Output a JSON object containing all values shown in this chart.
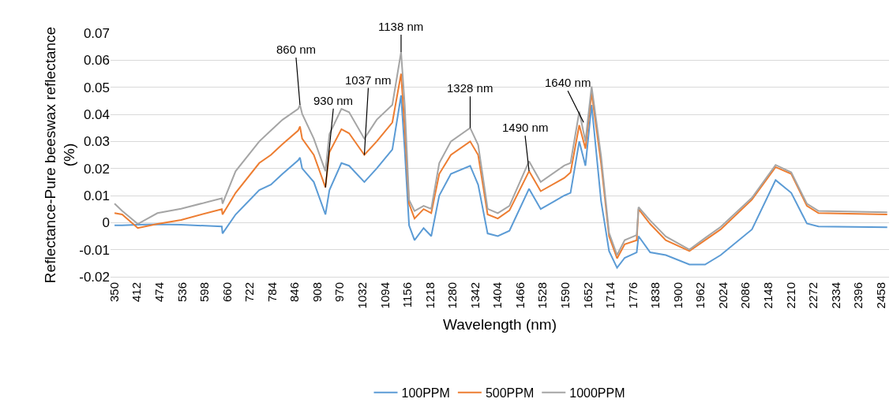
{
  "chart_data": {
    "type": "line",
    "xlabel": "Wavelength (nm)",
    "ylabel": "Reflectance-Pure beeswax reflectance\n(%)",
    "x": [
      350,
      371,
      414,
      468,
      533,
      645,
      647,
      683,
      748,
      780,
      812,
      855,
      860,
      866,
      898,
      930,
      941,
      974,
      995,
      1037,
      1071,
      1114,
      1138,
      1148,
      1160,
      1175,
      1200,
      1221,
      1243,
      1275,
      1328,
      1350,
      1376,
      1404,
      1436,
      1490,
      1522,
      1587,
      1604,
      1628,
      1645,
      1662,
      1688,
      1710,
      1732,
      1753,
      1786,
      1791,
      1823,
      1866,
      1931,
      1974,
      2017,
      2103,
      2168,
      2211,
      2254,
      2286,
      2475
    ],
    "series": [
      {
        "name": "100PPM",
        "color": "#5b9bd5",
        "values": [
          -0.001,
          -0.001,
          -0.0008,
          -0.0006,
          -0.0008,
          -0.0014,
          -0.004,
          0.003,
          0.012,
          0.014,
          0.018,
          0.023,
          0.024,
          0.02,
          0.015,
          0.003,
          0.012,
          0.022,
          0.021,
          0.015,
          0.02,
          0.027,
          0.047,
          0.027,
          -0.001,
          -0.0065,
          -0.002,
          -0.005,
          0.01,
          0.018,
          0.021,
          0.014,
          -0.004,
          -0.005,
          -0.003,
          0.0125,
          0.005,
          0.01,
          0.011,
          0.03,
          0.021,
          0.0435,
          0.008,
          -0.0105,
          -0.0167,
          -0.013,
          -0.011,
          -0.005,
          -0.011,
          -0.012,
          -0.0155,
          -0.0155,
          -0.012,
          -0.0025,
          0.0157,
          0.011,
          -0.0003,
          -0.0014,
          -0.0017
        ]
      },
      {
        "name": "500PPM",
        "color": "#ed7d31",
        "values": [
          0.0035,
          0.003,
          -0.002,
          -0.0005,
          0.001,
          0.005,
          0.003,
          0.011,
          0.022,
          0.025,
          0.029,
          0.034,
          0.0355,
          0.031,
          0.025,
          0.013,
          0.026,
          0.0345,
          0.033,
          0.025,
          0.03,
          0.037,
          0.055,
          0.035,
          0.007,
          0.0015,
          0.005,
          0.0035,
          0.018,
          0.025,
          0.03,
          0.025,
          0.003,
          0.0015,
          0.0045,
          0.019,
          0.0116,
          0.0165,
          0.0185,
          0.036,
          0.0273,
          0.048,
          0.022,
          -0.005,
          -0.0132,
          -0.008,
          -0.0065,
          0.005,
          -0.0005,
          -0.0065,
          -0.0105,
          -0.0065,
          -0.0025,
          0.0085,
          0.0205,
          0.018,
          0.0062,
          0.0035,
          0.003
        ]
      },
      {
        "name": "1000PPM",
        "color": "#a5a5a5",
        "values": [
          0.007,
          0.0043,
          -0.0005,
          0.0035,
          0.0051,
          0.009,
          0.007,
          0.019,
          0.03,
          0.034,
          0.038,
          0.042,
          0.0435,
          0.0402,
          0.031,
          0.019,
          0.0327,
          0.042,
          0.0408,
          0.031,
          0.038,
          0.0435,
          0.063,
          0.0435,
          0.0084,
          0.0043,
          0.0062,
          0.0051,
          0.022,
          0.03,
          0.035,
          0.0287,
          0.0051,
          0.0035,
          0.0062,
          0.0227,
          0.015,
          0.0211,
          0.022,
          0.041,
          0.03,
          0.0503,
          0.0246,
          -0.0038,
          -0.012,
          -0.0065,
          -0.0046,
          0.0057,
          0.0008,
          -0.0051,
          -0.01,
          -0.0057,
          -0.0016,
          0.0092,
          0.0213,
          0.0186,
          0.007,
          0.0043,
          0.0038
        ]
      }
    ],
    "xlim": [
      339,
      2480
    ],
    "xticks": [
      350,
      412,
      474,
      536,
      598,
      660,
      722,
      784,
      846,
      908,
      970,
      1032,
      1094,
      1156,
      1218,
      1280,
      1342,
      1404,
      1466,
      1528,
      1590,
      1652,
      1714,
      1776,
      1838,
      1900,
      1962,
      2024,
      2086,
      2148,
      2210,
      2272,
      2334,
      2396,
      2458
    ],
    "ylim": [
      -0.02,
      0.07
    ],
    "yticks": [
      -0.02,
      -0.01,
      0,
      0.01,
      0.02,
      0.03,
      0.04,
      0.05,
      0.06,
      0.07
    ],
    "grid": "y",
    "legend": "bottom",
    "marker": "none",
    "line_style": "solid",
    "annotations": [
      {
        "text": "860 nm",
        "x": 860,
        "y": 0.0435
      },
      {
        "text": "930 nm",
        "x": 930,
        "y": 0.013
      },
      {
        "text": "1037 nm",
        "x": 1037,
        "y": 0.025
      },
      {
        "text": "1138 nm",
        "x": 1138,
        "y": 0.063
      },
      {
        "text": "1328 nm",
        "x": 1328,
        "y": 0.035
      },
      {
        "text": "1490 nm",
        "x": 1490,
        "y": 0.019
      },
      {
        "text": "1640 nm",
        "x": 1640,
        "y": 0.037
      }
    ]
  }
}
